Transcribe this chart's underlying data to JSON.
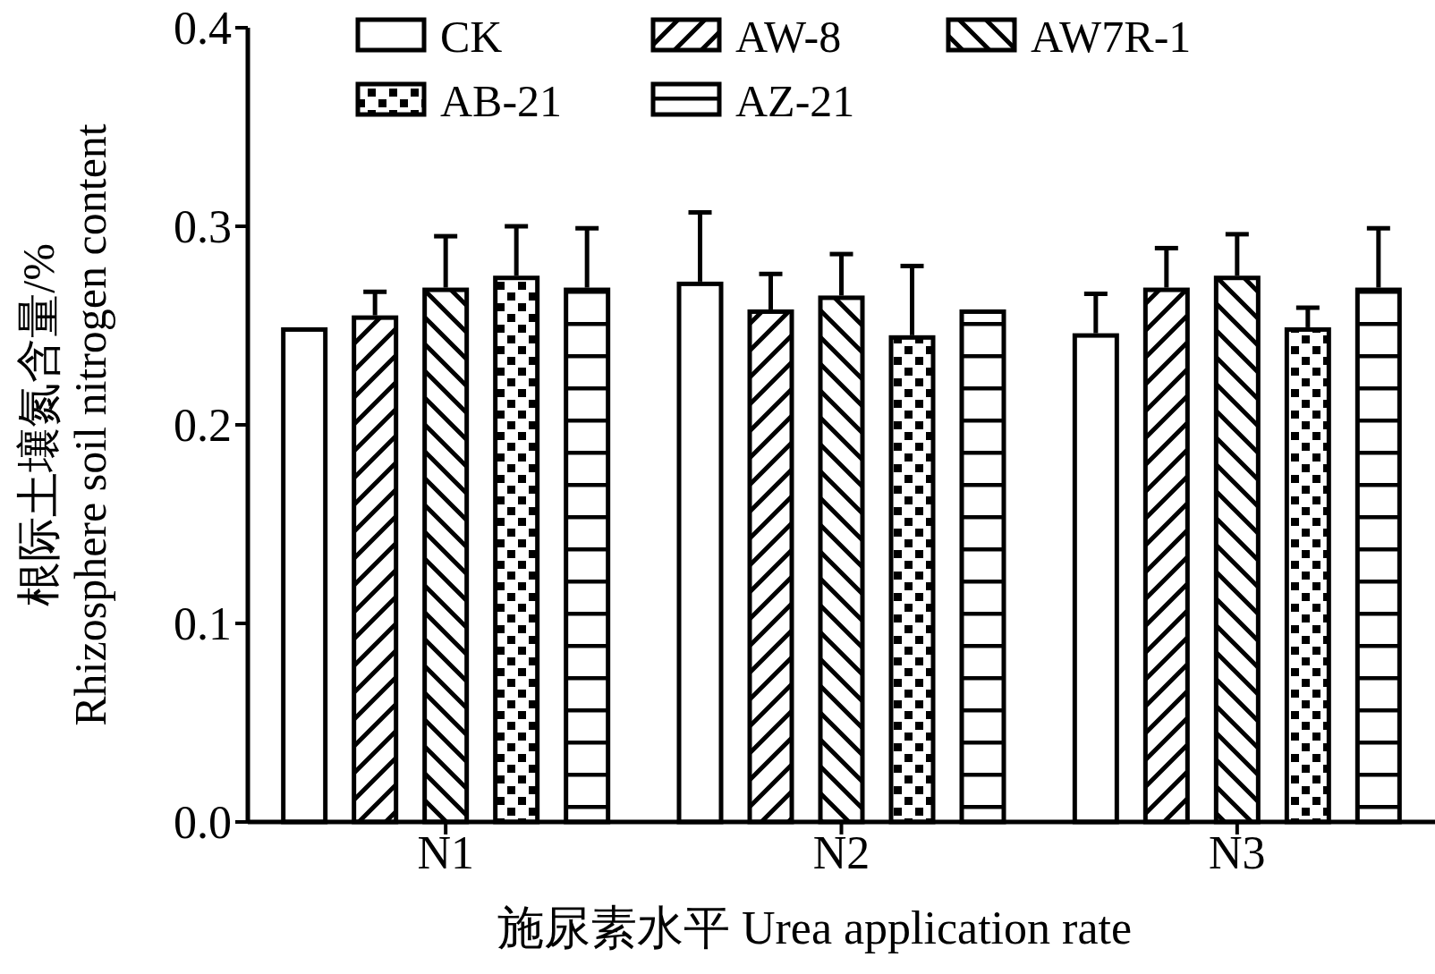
{
  "chart_data": {
    "type": "bar",
    "xlabel": "施尿素水平  Urea application rate",
    "ylabel": "根际土壤氮含量/%\nRhizosphere soil nitrogen content",
    "categories": [
      "N1",
      "N2",
      "N3"
    ],
    "series": [
      {
        "name": "CK",
        "color": "#000000",
        "values": [
          0.248,
          0.271,
          0.245
        ],
        "errors": [
          null,
          [
            0.271,
            0.307
          ],
          [
            0.245,
            0.266
          ]
        ]
      },
      {
        "name": "AW-8",
        "color": "#000000",
        "values": [
          0.254,
          0.257,
          0.268
        ],
        "errors": [
          [
            0.254,
            0.267
          ],
          [
            0.257,
            0.276
          ],
          [
            0.268,
            0.289
          ]
        ]
      },
      {
        "name": "AW7R-1",
        "color": "#000000",
        "values": [
          0.268,
          0.264,
          0.274
        ],
        "errors": [
          [
            0.268,
            0.295
          ],
          [
            0.264,
            0.286
          ],
          [
            0.274,
            0.296
          ]
        ]
      },
      {
        "name": "AB-21",
        "color": "#000000",
        "values": [
          0.274,
          0.244,
          0.248
        ],
        "errors": [
          [
            0.274,
            0.3
          ],
          [
            0.244,
            0.28
          ],
          [
            0.248,
            0.259
          ]
        ]
      },
      {
        "name": "AZ-21",
        "color": "#000000",
        "values": [
          0.268,
          0.257,
          0.268
        ],
        "errors": [
          [
            0.268,
            0.299
          ],
          null,
          [
            0.268,
            0.299
          ]
        ]
      }
    ],
    "ylim": [
      0,
      0.4
    ],
    "yticks": [
      {
        "value": 0,
        "label": "0.0"
      },
      0.1,
      0.2,
      0.3,
      0.4
    ],
    "legend": "top left",
    "grid": false
  }
}
